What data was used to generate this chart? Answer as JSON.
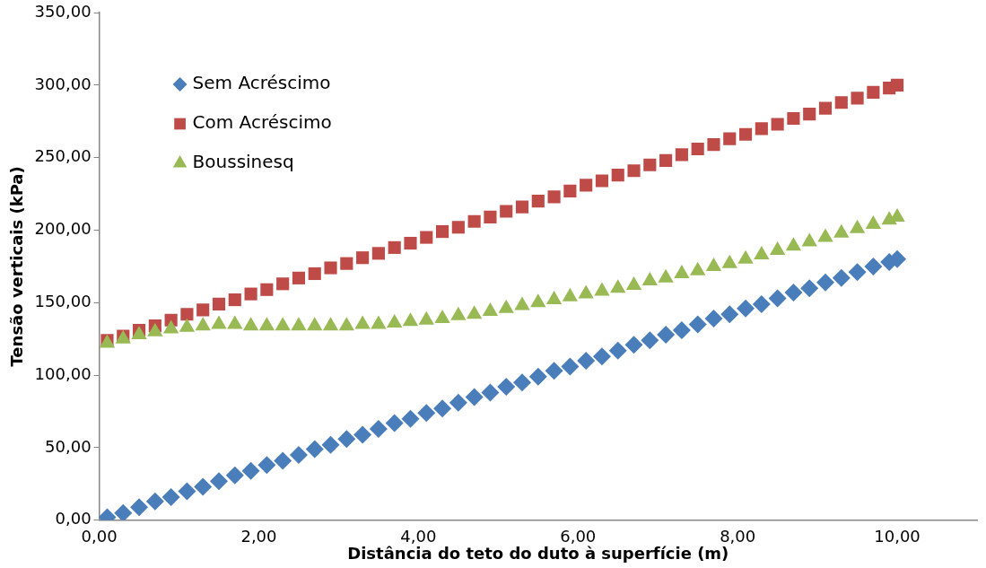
{
  "chart_data": {
    "type": "scatter",
    "xlabel": "Distância do teto do duto à superfície (m)",
    "ylabel": "Tensão verticais (kPa)",
    "x": [
      0.1,
      0.3,
      0.5,
      0.7,
      0.9,
      1.1,
      1.3,
      1.5,
      1.7,
      1.9,
      2.1,
      2.3,
      2.5,
      2.7,
      2.9,
      3.1,
      3.3,
      3.5,
      3.7,
      3.9,
      4.1,
      4.3,
      4.5,
      4.7,
      4.9,
      5.1,
      5.3,
      5.5,
      5.7,
      5.9,
      6.1,
      6.3,
      6.5,
      6.7,
      6.9,
      7.1,
      7.3,
      7.5,
      7.7,
      7.9,
      8.1,
      8.3,
      8.5,
      8.7,
      8.9,
      9.1,
      9.3,
      9.5,
      9.7,
      9.9,
      10
    ],
    "series": [
      {
        "name": "Sem Acréscimo",
        "color": "#4a7ebb",
        "marker": "diamond",
        "values": [
          2,
          5,
          9,
          13,
          16,
          20,
          23,
          27,
          31,
          34,
          38,
          41,
          45,
          49,
          52,
          56,
          59,
          63,
          67,
          70,
          74,
          77,
          81,
          85,
          88,
          92,
          95,
          99,
          103,
          106,
          110,
          113,
          117,
          121,
          124,
          128,
          131,
          135,
          139,
          142,
          146,
          149,
          153,
          157,
          160,
          164,
          167,
          171,
          175,
          178,
          180
        ]
      },
      {
        "name": "Com Acréscimo",
        "color": "#be4b48",
        "marker": "square",
        "values": [
          124,
          127,
          131,
          134,
          138,
          142,
          145,
          149,
          152,
          156,
          159,
          163,
          167,
          170,
          174,
          177,
          181,
          184,
          188,
          191,
          195,
          199,
          202,
          206,
          209,
          213,
          216,
          220,
          223,
          227,
          231,
          234,
          238,
          241,
          245,
          248,
          252,
          256,
          259,
          263,
          266,
          270,
          273,
          277,
          280,
          284,
          288,
          291,
          295,
          298,
          300
        ]
      },
      {
        "name": "Boussinesq",
        "color": "#98b954",
        "marker": "triangle",
        "values": [
          122,
          125,
          128,
          130,
          132,
          133,
          134,
          135,
          135,
          134,
          134,
          134,
          134,
          134,
          134,
          134,
          135,
          135,
          136,
          137,
          138,
          139,
          141,
          142,
          144,
          146,
          148,
          150,
          152,
          154,
          156,
          158,
          160,
          162,
          165,
          167,
          170,
          172,
          175,
          177,
          180,
          183,
          186,
          189,
          192,
          195,
          198,
          201,
          204,
          207,
          209
        ]
      }
    ],
    "xlim": [
      0,
      11
    ],
    "xticks": [
      {
        "value": 0,
        "label": "0,00"
      },
      {
        "value": 2,
        "label": "2,00"
      },
      {
        "value": 4,
        "label": "4,00"
      },
      {
        "value": 6,
        "label": "6,00"
      },
      {
        "value": 8,
        "label": "8,00"
      },
      {
        "value": 10,
        "label": "10,00"
      }
    ],
    "ylim": [
      0,
      350
    ],
    "yticks": [
      {
        "value": 0,
        "label": "0,00"
      },
      {
        "value": 50,
        "label": "50,00"
      },
      {
        "value": 100,
        "label": "100,00"
      },
      {
        "value": 150,
        "label": "150,00"
      },
      {
        "value": 200,
        "label": "200,00"
      },
      {
        "value": 250,
        "label": "250,00"
      },
      {
        "value": 300,
        "label": "300,00"
      },
      {
        "value": 350,
        "label": "350,00"
      }
    ],
    "grid": false,
    "legend": "top left"
  }
}
